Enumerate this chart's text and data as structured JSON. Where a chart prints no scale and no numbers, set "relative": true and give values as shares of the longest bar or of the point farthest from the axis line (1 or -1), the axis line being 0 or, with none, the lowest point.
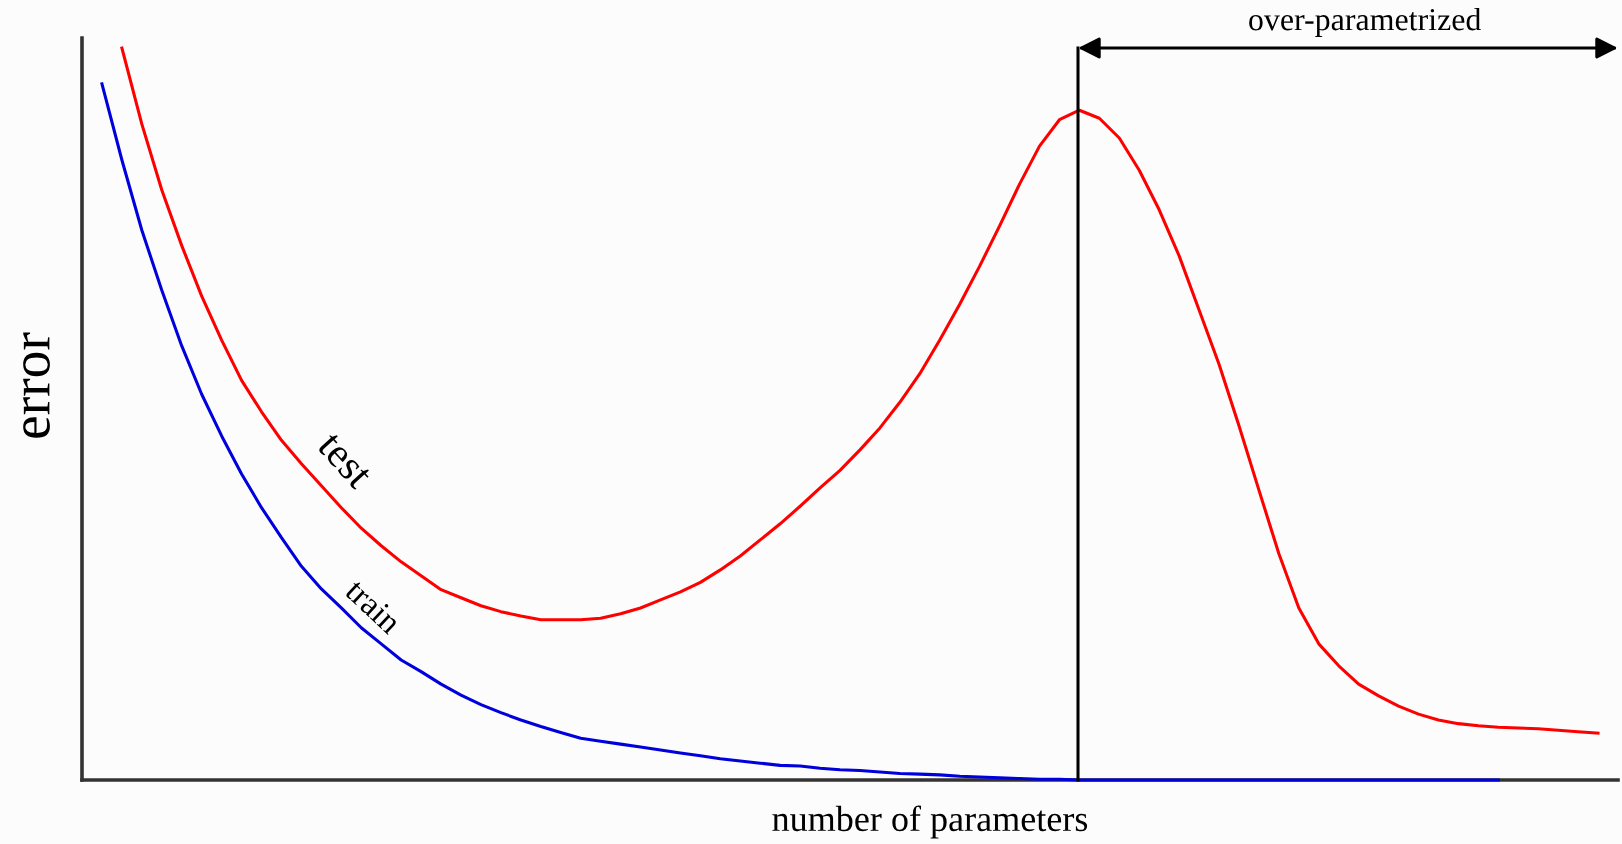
{
  "chart_data": {
    "type": "line",
    "relative": true,
    "xlabel": "number of parameters",
    "ylabel": "error",
    "tick_labels": false,
    "line_style": "solid",
    "categories": [
      null,
      null,
      null,
      null,
      null,
      null,
      null,
      null,
      null,
      null,
      null,
      null,
      null,
      null,
      null,
      null,
      null,
      null,
      null,
      null,
      null,
      null,
      null,
      null,
      null,
      null,
      null,
      null,
      null,
      null,
      null,
      null,
      null,
      null,
      null,
      null,
      null,
      null,
      null,
      null,
      null,
      null,
      null,
      null,
      null,
      null,
      null,
      null,
      null,
      null,
      null,
      null,
      null,
      null,
      null,
      null,
      null,
      null,
      null,
      null,
      null,
      null,
      null,
      null,
      null,
      null,
      null,
      null,
      null,
      null,
      null,
      null,
      null,
      null,
      null,
      null,
      null,
      null
    ],
    "series": [
      {
        "name": "test",
        "color": "#ff0000",
        "values": [
          null,
          null,
          1.0,
          0.896,
          0.806,
          0.73,
          0.661,
          0.601,
          0.546,
          0.503,
          0.464,
          0.432,
          0.402,
          0.372,
          0.344,
          0.32,
          0.298,
          0.279,
          0.26,
          0.249,
          0.238,
          0.23,
          0.224,
          0.219,
          0.219,
          0.219,
          0.221,
          0.227,
          0.235,
          0.246,
          0.257,
          0.27,
          0.287,
          0.306,
          0.328,
          0.35,
          0.374,
          0.399,
          0.423,
          0.451,
          0.481,
          0.516,
          0.555,
          0.601,
          0.65,
          0.702,
          0.757,
          0.814,
          0.866,
          0.902,
          0.915,
          0.904,
          0.877,
          0.833,
          0.779,
          0.716,
          0.642,
          0.568,
          0.484,
          0.396,
          0.309,
          0.235,
          0.186,
          0.156,
          0.131,
          0.115,
          0.101,
          0.09,
          0.082,
          0.077,
          0.074,
          0.072,
          0.071,
          0.07,
          0.068,
          0.066,
          0.064,
          null
        ]
      },
      {
        "name": "train",
        "color": "#0000dd",
        "values": [
          null,
          0.951,
          0.847,
          0.751,
          0.669,
          0.593,
          0.527,
          0.47,
          0.418,
          0.372,
          0.331,
          0.292,
          0.261,
          0.235,
          0.208,
          0.186,
          0.164,
          0.148,
          0.131,
          0.116,
          0.103,
          0.092,
          0.082,
          0.073,
          0.065,
          0.057,
          0.053,
          0.049,
          0.045,
          0.041,
          0.037,
          0.033,
          0.029,
          0.026,
          0.023,
          0.02,
          0.019,
          0.016,
          0.014,
          0.013,
          0.011,
          0.009,
          0.008,
          0.007,
          0.005,
          0.004,
          0.003,
          0.002,
          0.001,
          0.001,
          0,
          0,
          0,
          0,
          0,
          0,
          0,
          0,
          0,
          0,
          0,
          0,
          0,
          0,
          0,
          0,
          0,
          0,
          0,
          0,
          0,
          0,
          null,
          null,
          null,
          null,
          null,
          null
        ]
      }
    ],
    "annotations": [
      "over-parametrized"
    ]
  }
}
